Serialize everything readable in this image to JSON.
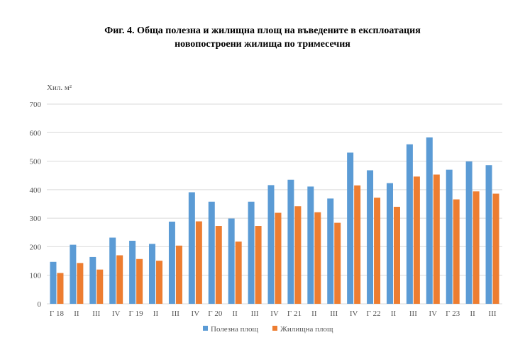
{
  "title_line1": "Фиг. 4. Обща полезна и жилищна площ на въведените в експлоатация",
  "title_line2": "новопостроени жилища по тримесечия",
  "colors": {
    "series1": "#5B9BD5",
    "series2": "#ED7D31",
    "grid": "#d9d9d9"
  },
  "chart_data": {
    "type": "bar",
    "title": "Фиг. 4. Обща полезна и жилищна площ на въведените в експлоатация новопостроени жилища по тримесечия",
    "ylabel": "Хил. м²",
    "xlabel": "",
    "ylim": [
      0,
      700
    ],
    "yticks": [
      0,
      100,
      200,
      300,
      400,
      500,
      600,
      700
    ],
    "grid": true,
    "legend_position": "bottom",
    "categories": [
      "Г 18",
      "II",
      "III",
      "IV",
      "Г 19",
      "II",
      "III",
      "IV",
      "Г 20",
      "II",
      "III",
      "IV",
      "Г 21",
      "II",
      "III",
      "IV",
      "Г 22",
      "II",
      "III",
      "IV",
      "Г 23",
      "II",
      "III"
    ],
    "series": [
      {
        "name": "Полезна площ",
        "values": [
          147,
          207,
          164,
          232,
          221,
          210,
          288,
          391,
          358,
          299,
          358,
          416,
          435,
          411,
          369,
          530,
          468,
          423,
          559,
          583,
          470,
          499,
          486
        ]
      },
      {
        "name": "Жилищна площ",
        "values": [
          108,
          143,
          120,
          170,
          157,
          151,
          204,
          289,
          273,
          218,
          273,
          319,
          342,
          321,
          284,
          415,
          372,
          340,
          446,
          453,
          366,
          394,
          386
        ]
      }
    ]
  }
}
